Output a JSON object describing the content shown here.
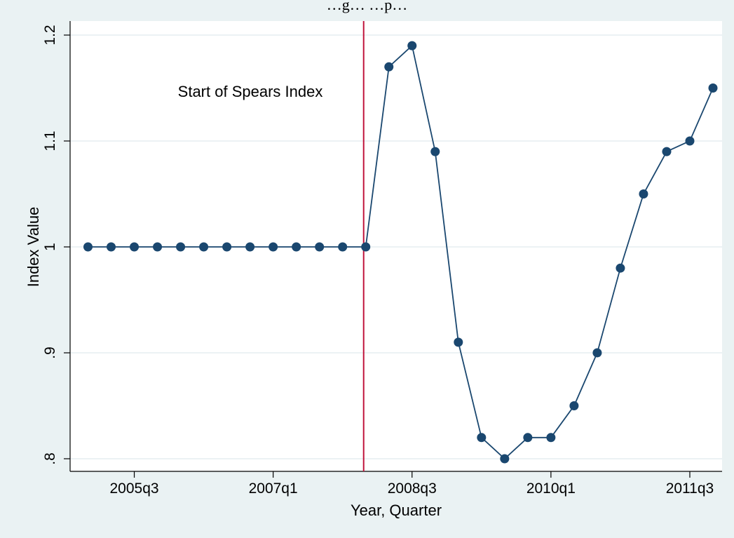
{
  "chart_data": {
    "type": "line",
    "title": "…g… …p…",
    "xlabel": "Year, Quarter",
    "ylabel": "Index Value",
    "x": [
      "2005q1",
      "2005q2",
      "2005q3",
      "2005q4",
      "2006q1",
      "2006q2",
      "2006q3",
      "2006q4",
      "2007q1",
      "2007q2",
      "2007q3",
      "2007q4",
      "2008q1",
      "2008q2",
      "2008q3",
      "2008q4",
      "2009q1",
      "2009q2",
      "2009q3",
      "2009q4",
      "2010q1",
      "2010q2",
      "2010q3",
      "2010q4",
      "2011q1",
      "2011q2",
      "2011q3",
      "2011q4"
    ],
    "series": [
      {
        "values": [
          1,
          1,
          1,
          1,
          1,
          1,
          1,
          1,
          1,
          1,
          1,
          1,
          1,
          1.17,
          1.19,
          1.09,
          0.91,
          0.82,
          0.8,
          0.82,
          0.82,
          0.85,
          0.9,
          0.98,
          1.05,
          1.09,
          1.1,
          1.15
        ]
      }
    ],
    "xticks": [
      "2005q3",
      "2007q1",
      "2008q3",
      "2010q1",
      "2011q3"
    ],
    "yticks": [
      ".8",
      ".9",
      "1",
      "1.1",
      "1.2"
    ],
    "ylim": [
      0.8,
      1.2
    ],
    "grid": true,
    "reference_line": {
      "x": "2008q1",
      "color": "#c0143c"
    },
    "annotation": "Start of Spears Index",
    "colors": {
      "line": "#1a476f",
      "marker": "#1a476f",
      "background": "#eaf2f3",
      "plot_bg": "#ffffff"
    }
  }
}
